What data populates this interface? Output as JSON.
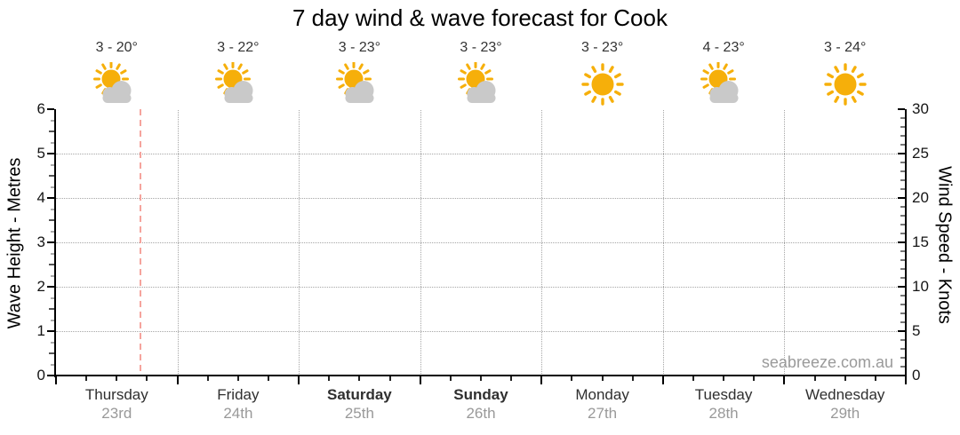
{
  "title": "7 day wind & wave forecast for Cook",
  "watermark": "seabreeze.com.au",
  "left_axis": {
    "title": "Wave Height - Metres",
    "min": 0,
    "max": 6,
    "major_tick_step": 1,
    "minor_tick_step": 0.25,
    "tick_labels": [
      "0",
      "1",
      "2",
      "3",
      "4",
      "5",
      "6"
    ]
  },
  "right_axis": {
    "title": "Wind Speed - Knots",
    "min": 0,
    "max": 30,
    "major_tick_step": 5,
    "minor_tick_step": 1,
    "tick_labels": [
      "0",
      "5",
      "10",
      "15",
      "20",
      "25",
      "30"
    ]
  },
  "days": [
    {
      "name": "Thursday",
      "date": "23rd",
      "temp_label": "3 - 20°",
      "condition": "partly-cloudy",
      "weekend": false
    },
    {
      "name": "Friday",
      "date": "24th",
      "temp_label": "3 - 22°",
      "condition": "partly-cloudy",
      "weekend": false
    },
    {
      "name": "Saturday",
      "date": "25th",
      "temp_label": "3 - 23°",
      "condition": "partly-cloudy",
      "weekend": true
    },
    {
      "name": "Sunday",
      "date": "26th",
      "temp_label": "3 - 23°",
      "condition": "partly-cloudy",
      "weekend": true
    },
    {
      "name": "Monday",
      "date": "27th",
      "temp_label": "3 - 23°",
      "condition": "sunny",
      "weekend": false
    },
    {
      "name": "Tuesday",
      "date": "28th",
      "temp_label": "4 - 23°",
      "condition": "partly-cloudy",
      "weekend": false
    },
    {
      "name": "Wednesday",
      "date": "29th",
      "temp_label": "3 - 24°",
      "condition": "sunny",
      "weekend": false
    }
  ],
  "current_time_marker": {
    "day_index": 0,
    "day_fraction": 0.69
  },
  "colors": {
    "sun": "#f6af0a",
    "cloud": "#c9c9c9",
    "gridline": "#a6a6a6",
    "axis": "#000000",
    "half_tick": "#555555",
    "quarter_tick": "#aaaaaa",
    "right_minor_tick": "#777777",
    "x_minor_tick": "#222222",
    "current_time": "#f5a49d",
    "temp_text": "#333333",
    "day_text": "#2f2f2f",
    "date_text": "#999999",
    "watermark_text": "#9a9a9a"
  },
  "chart_data": {
    "type": "line",
    "title": "7 day wind & wave forecast for Cook",
    "categories": [
      "Thursday 23rd",
      "Friday 24th",
      "Saturday 25th",
      "Sunday 26th",
      "Monday 27th",
      "Tuesday 28th",
      "Wednesday 29th"
    ],
    "series": [],
    "y_left": {
      "label": "Wave Height - Metres",
      "range": [
        0,
        6
      ],
      "ticks": [
        0,
        1,
        2,
        3,
        4,
        5,
        6
      ]
    },
    "y_right": {
      "label": "Wind Speed - Knots",
      "range": [
        0,
        30
      ],
      "ticks": [
        0,
        5,
        10,
        15,
        20,
        25,
        30
      ]
    },
    "grid": true,
    "legend": false,
    "annotations": {
      "daily_temperature_range_c": [
        [
          3,
          20
        ],
        [
          3,
          22
        ],
        [
          3,
          23
        ],
        [
          3,
          23
        ],
        [
          3,
          23
        ],
        [
          4,
          23
        ],
        [
          3,
          24
        ]
      ],
      "daily_conditions": [
        "partly-cloudy",
        "partly-cloudy",
        "partly-cloudy",
        "partly-cloudy",
        "sunny",
        "partly-cloudy",
        "sunny"
      ],
      "current_time_marker_day": "Thursday"
    }
  }
}
